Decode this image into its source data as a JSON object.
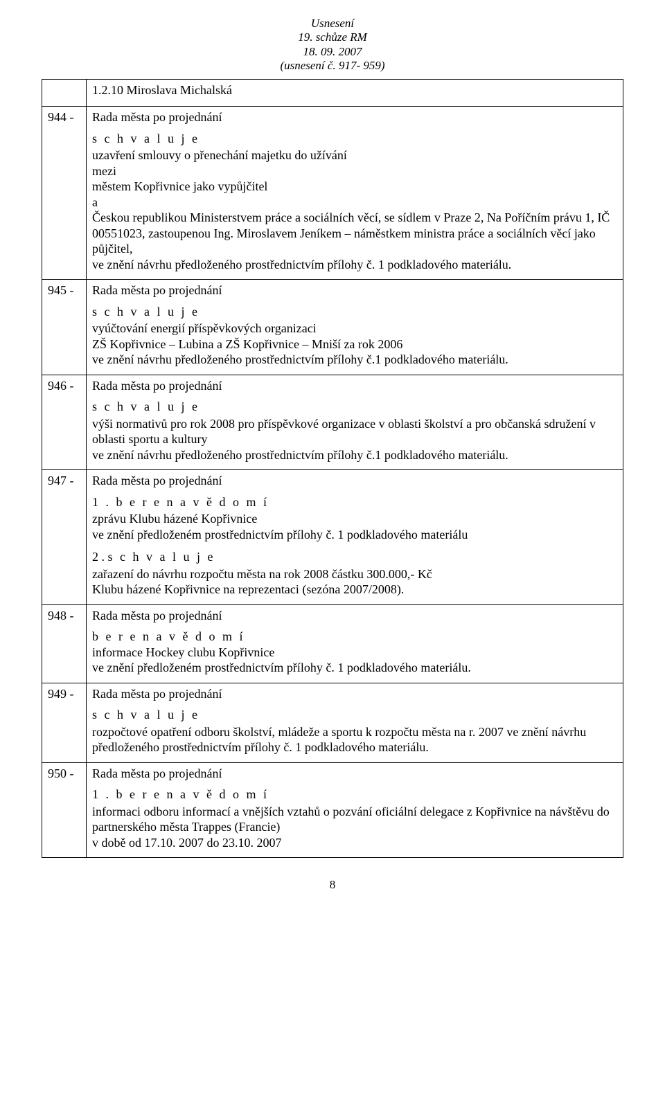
{
  "header": {
    "line1": "Usnesení",
    "line2": "19. schůze RM",
    "line3": "18. 09. 2007",
    "line4": "(usnesení č. 917- 959)"
  },
  "intro_row": {
    "line": "1.2.10 Miroslava Michalská"
  },
  "rows": [
    {
      "num": "944 -",
      "rada": "Rada města po projednání",
      "blocks": [
        {
          "approve": "s c h v a l u j e",
          "lines": [
            "uzavření smlouvy o přenechání majetku do užívání",
            "mezi",
            "městem Kopřivnice jako vypůjčitel",
            "a",
            "Českou republikou Ministerstvem práce a sociálních věcí, se sídlem v Praze 2, Na Poříčním právu 1, IČ 00551023, zastoupenou Ing. Miroslavem Jeníkem – náměstkem ministra práce a sociálních věcí jako půjčitel,",
            "ve znění návrhu předloženého prostřednictvím  přílohy č. 1 podkladového materiálu."
          ]
        }
      ]
    },
    {
      "num": "945 -",
      "rada": "Rada města po projednání",
      "blocks": [
        {
          "approve": "s c h v a l u j e",
          "lines": [
            "vyúčtování energií příspěvkových organizaci",
            "ZŠ Kopřivnice – Lubina a ZŠ Kopřivnice – Mniší  za rok 2006",
            "ve znění návrhu předloženého prostřednictvím přílohy č.1 podkladového materiálu."
          ]
        }
      ]
    },
    {
      "num": "946 -",
      "rada": "Rada města po projednání",
      "blocks": [
        {
          "approve": "s c h v a l u j e",
          "lines": [
            "výši normativů  pro  rok  2008 pro příspěvkové organizace v oblasti školství a pro občanská sdružení v oblasti sportu a kultury",
            "ve znění návrhu předloženého prostřednictvím přílohy č.1 podkladového materiálu."
          ]
        }
      ]
    },
    {
      "num": "947 -",
      "rada": "Rada města po projednání",
      "blocks": [
        {
          "bere": "1 .  b e r e  n a  v ě d o m í",
          "lines": [
            "zprávu Klubu házené Kopřivnice",
            "ve znění předloženém prostřednictvím přílohy č. 1 podkladového materiálu"
          ]
        },
        {
          "approve2_num": "2 . ",
          "approve2_text": "s c h v a l u j e",
          "lines": [
            "zařazení do návrhu rozpočtu města na rok 2008 částku 300.000,- Kč",
            "Klubu házené Kopřivnice na reprezentaci (sezóna 2007/2008)."
          ]
        }
      ]
    },
    {
      "num": "948 -",
      "rada": "Rada města po projednání",
      "blocks": [
        {
          "bere_plain": "b e r e  n a  v ě d o m í",
          "lines": [
            "informace  Hockey clubu Kopřivnice",
            "ve znění předloženém prostřednictvím přílohy č. 1 podkladového materiálu."
          ]
        }
      ]
    },
    {
      "num": "949 -",
      "rada": "Rada města po projednání",
      "blocks": [
        {
          "approve": "s c h v a l u j e",
          "lines": [
            "rozpočtové opatření odboru školství, mládeže a sportu k rozpočtu města na r. 2007 ve znění návrhu předloženého prostřednictvím přílohy č. 1 podkladového materiálu."
          ]
        }
      ]
    },
    {
      "num": "950 -",
      "rada": "Rada města po projednání",
      "blocks": [
        {
          "bere": "1 . b e r e  n a  v ě d o m í",
          "lines": [
            "informaci odboru informací a vnějších vztahů o pozvání oficiální delegace z Kopřivnice na návštěvu do partnerského města Trappes (Francie)",
            "v době od  17.10. 2007 do 23.10. 2007"
          ]
        }
      ]
    }
  ],
  "pagenum": "8"
}
